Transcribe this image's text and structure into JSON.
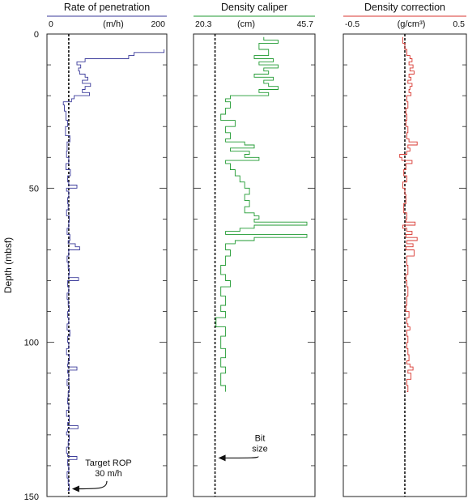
{
  "chart_data": {
    "type": "line",
    "y_axis": {
      "label": "Depth (mbsf)",
      "range": [
        0,
        150
      ],
      "inverted": true,
      "ticks": [
        0,
        50,
        100,
        150
      ],
      "minor_tick_step": 10
    },
    "panels": [
      {
        "title": "Rate of penetration",
        "unit": "(m/h)",
        "color": "#3a3a9a",
        "xlim": [
          -10,
          210
        ],
        "tick_labels": [
          {
            "value": 0,
            "label": "0"
          },
          {
            "value": 200,
            "label": "200"
          }
        ],
        "reference": {
          "value": 30,
          "label_lines": [
            "Target ROP",
            "30 m/h"
          ],
          "label_depth": 140
        },
        "series": {
          "depth": [
            5,
            6,
            7,
            8,
            9,
            10,
            11,
            12,
            13,
            14,
            15,
            16,
            17,
            18,
            19,
            20,
            21,
            22,
            23,
            25,
            28,
            30,
            33,
            35,
            38,
            40,
            42,
            44,
            46,
            48,
            49,
            50,
            51,
            53,
            55,
            57,
            59,
            61,
            63,
            65,
            67,
            68,
            69,
            70,
            72,
            74,
            76,
            78,
            79,
            80,
            82,
            84,
            86,
            88,
            90,
            92,
            94,
            96,
            98,
            100,
            102,
            104,
            106,
            107,
            108,
            109,
            110,
            112,
            114,
            116,
            118,
            120,
            122,
            124,
            126,
            127,
            128,
            129,
            130,
            132,
            134,
            136,
            137,
            138,
            140,
            142,
            144,
            146,
            148
          ],
          "value": [
            205,
            150,
            140,
            60,
            45,
            52,
            48,
            50,
            60,
            65,
            55,
            70,
            60,
            55,
            68,
            40,
            35,
            20,
            22,
            25,
            28,
            24,
            32,
            27,
            26,
            30,
            25,
            33,
            28,
            30,
            45,
            26,
            30,
            28,
            29,
            26,
            31,
            30,
            27,
            32,
            29,
            42,
            50,
            30,
            27,
            29,
            31,
            30,
            48,
            28,
            30,
            27,
            29,
            31,
            28,
            30,
            27,
            32,
            28,
            30,
            26,
            31,
            29,
            28,
            45,
            28,
            30,
            27,
            31,
            29,
            28,
            30,
            26,
            31,
            28,
            47,
            28,
            26,
            31,
            29,
            26,
            28,
            45,
            28,
            30,
            27,
            29,
            31,
            28
          ]
        }
      },
      {
        "title": "Density caliper",
        "unit": "(cm)",
        "color": "#1f9a30",
        "xlim": [
          20.3,
          45.7
        ],
        "tick_labels": [
          {
            "value": 20.3,
            "label": "20.3"
          },
          {
            "value": 45.7,
            "label": "45.7"
          }
        ],
        "reference": {
          "value": 24.8,
          "label_lines": [
            "Bit",
            "size"
          ],
          "label_depth": 132
        },
        "series": {
          "depth": [
            1,
            2,
            3,
            5,
            7,
            8,
            9,
            10,
            11,
            12,
            13,
            14,
            15,
            16,
            17,
            18,
            19,
            20,
            21,
            22,
            24,
            26,
            28,
            30,
            32,
            34,
            35,
            36,
            37,
            38,
            39,
            40,
            41,
            42,
            44,
            46,
            48,
            50,
            52,
            54,
            56,
            58,
            59,
            60,
            61,
            62,
            63,
            64,
            65,
            66,
            67,
            68,
            70,
            72,
            75,
            78,
            80,
            82,
            85,
            88,
            90,
            92,
            95,
            98,
            100,
            102,
            105,
            108,
            110,
            112,
            114,
            116
          ],
          "value": [
            35,
            38,
            34,
            36,
            33,
            37,
            34,
            38,
            35,
            36,
            33,
            37,
            35,
            36,
            38,
            34,
            36,
            28,
            27,
            28,
            27,
            26,
            29,
            27,
            28,
            27,
            31,
            33,
            28,
            32,
            31,
            34,
            27,
            28,
            29,
            30,
            31,
            32,
            31,
            32,
            31,
            33,
            34,
            33,
            44,
            33,
            30,
            27,
            44,
            33,
            29,
            27,
            28,
            27,
            26,
            27,
            28,
            26,
            27,
            26,
            27,
            25,
            27,
            26,
            26,
            27,
            26,
            27,
            26,
            26,
            27,
            27
          ]
        }
      },
      {
        "title": "Density correction",
        "unit": "(g/cm³)",
        "color": "#d8362f",
        "xlim": [
          -0.6,
          0.6
        ],
        "tick_labels": [
          {
            "value": -0.5,
            "label": "-0.5"
          },
          {
            "value": 0.5,
            "label": "0.5"
          }
        ],
        "reference": {
          "value": 0,
          "label_lines": [],
          "label_depth": 0
        },
        "series": {
          "depth": [
            1,
            3,
            5,
            7,
            8,
            9,
            10,
            11,
            12,
            13,
            14,
            15,
            16,
            17,
            18,
            19,
            20,
            22,
            24,
            26,
            28,
            30,
            32,
            34,
            35,
            36,
            37,
            38,
            39,
            40,
            41,
            42,
            44,
            46,
            48,
            50,
            52,
            55,
            58,
            60,
            61,
            62,
            63,
            64,
            65,
            66,
            67,
            68,
            69,
            70,
            72,
            75,
            78,
            80,
            82,
            85,
            88,
            90,
            92,
            94,
            95,
            96,
            98,
            100,
            102,
            104,
            106,
            107,
            108,
            109,
            110,
            112,
            114,
            116
          ],
          "value": [
            -0.02,
            0,
            0.02,
            0.05,
            0.07,
            0.04,
            0.08,
            0.05,
            0.09,
            0.04,
            0.06,
            0.03,
            0.07,
            0.05,
            0.04,
            0.06,
            0.02,
            0.03,
            0.01,
            0.02,
            0.01,
            0.03,
            0.02,
            0.04,
            0.12,
            0.03,
            0.05,
            0.02,
            -0.05,
            -0.03,
            0.07,
            0.01,
            -0.01,
            0.02,
            -0.02,
            0,
            0.01,
            -0.01,
            0.02,
            0.01,
            0.1,
            -0.02,
            0.02,
            0.07,
            0.01,
            0.12,
            0.02,
            0.08,
            0.01,
            0.09,
            0.02,
            0.03,
            0.01,
            0.02,
            0.03,
            0.02,
            0.01,
            0.04,
            0.02,
            0.03,
            0.05,
            0.02,
            0.03,
            0.02,
            0.03,
            0.04,
            0.02,
            0.05,
            0.08,
            0.03,
            0.06,
            0.02,
            0.03,
            0.02
          ]
        }
      }
    ]
  }
}
